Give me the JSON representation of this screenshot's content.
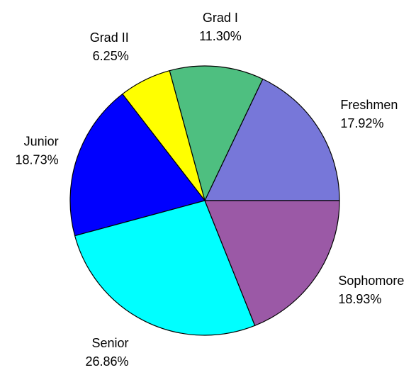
{
  "chart_data": {
    "type": "pie",
    "categories": [
      "Freshmen",
      "Grad I",
      "Grad II",
      "Junior",
      "Senior",
      "Sophomore"
    ],
    "values": [
      17.92,
      11.3,
      6.25,
      18.73,
      26.86,
      18.93
    ],
    "value_labels": [
      "17.92%",
      "11.30%",
      "6.25%",
      "18.73%",
      "26.86%",
      "18.93%"
    ],
    "colors": [
      "#7777d9",
      "#4ebf80",
      "#ffff00",
      "#0000ff",
      "#00ffff",
      "#9b59a6"
    ]
  }
}
